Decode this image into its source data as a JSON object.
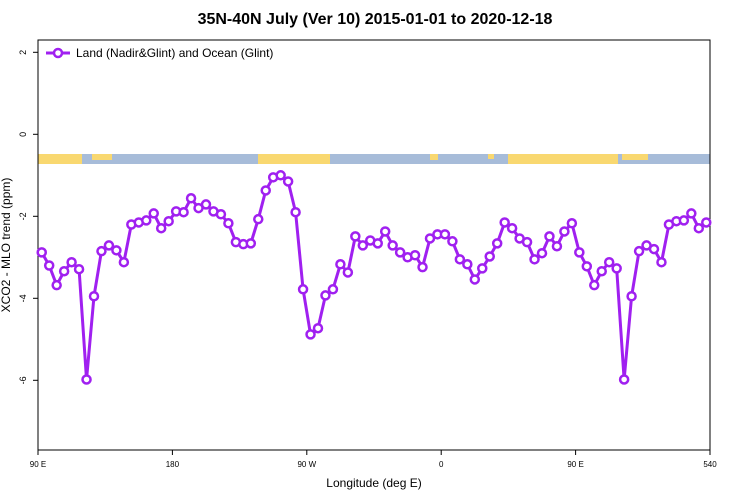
{
  "chart_data": {
    "type": "line",
    "title": "35N-40N July (Ver 10)   2015-01-01 to 2020-12-18",
    "xlabel": "Longitude (deg E)",
    "ylabel": "XCO2 - MLO trend (ppm)",
    "x": [
      92.5,
      97.5,
      102.5,
      107.5,
      112.5,
      117.5,
      122.5,
      127.5,
      132.5,
      137.5,
      142.5,
      147.5,
      152.5,
      157.5,
      162.5,
      167.5,
      172.5,
      177.5,
      182.5,
      187.5,
      192.5,
      197.5,
      202.5,
      207.5,
      212.5,
      217.5,
      222.5,
      227.5,
      232.5,
      237.5,
      242.5,
      247.5,
      252.5,
      257.5,
      262.5,
      267.5,
      272.5,
      277.5,
      282.5,
      287.5,
      292.5,
      297.5,
      302.5,
      307.5,
      312.5,
      317.5,
      322.5,
      327.5,
      332.5,
      337.5,
      342.5,
      347.5,
      352.5,
      357.5,
      362.5,
      367.5,
      372.5,
      377.5,
      382.5,
      387.5,
      392.5,
      397.5,
      402.5,
      407.5,
      412.5,
      417.5,
      422.5,
      427.5,
      432.5,
      437.5,
      442.5,
      447.5,
      452.5,
      457.5,
      462.5,
      467.5,
      472.5,
      477.5,
      482.5,
      487.5,
      492.5,
      497.5,
      502.5,
      507.5,
      512.5,
      517.5,
      522.5,
      527.5,
      532.5,
      537.5
    ],
    "series": [
      {
        "name": "Land (Nadir&Glint) and Ocean (Glint)",
        "color": "#a020f0",
        "values": [
          -2.88,
          -3.2,
          -3.68,
          -3.34,
          -3.12,
          -3.29,
          -5.98,
          -3.95,
          -2.85,
          -2.71,
          -2.83,
          -3.12,
          -2.2,
          -2.15,
          -2.1,
          -1.93,
          -2.29,
          -2.12,
          -1.88,
          -1.9,
          -1.56,
          -1.8,
          -1.71,
          -1.88,
          -1.95,
          -2.17,
          -2.63,
          -2.68,
          -2.66,
          -2.07,
          -1.37,
          -1.05,
          -1.0,
          -1.15,
          -1.9,
          -3.78,
          -4.88,
          -4.73,
          -3.93,
          -3.78,
          -3.17,
          -3.37,
          -2.49,
          -2.71,
          -2.59,
          -2.66,
          -2.37,
          -2.71,
          -2.88,
          -3.0,
          -2.95,
          -3.24,
          -2.54,
          -2.44,
          -2.44,
          -2.61,
          -3.05,
          -3.17,
          -3.54,
          -3.27,
          -2.98,
          -2.66,
          -2.15,
          -2.29,
          -2.54,
          -2.63,
          -3.05,
          -2.9,
          -2.49,
          -2.73,
          -2.37,
          -2.17,
          -2.88,
          -3.22,
          -3.68,
          -3.34,
          -3.12,
          -3.27,
          -5.98,
          -3.95,
          -2.85,
          -2.71,
          -2.8,
          -3.12,
          -2.2,
          -2.12,
          -2.1,
          -1.93,
          -2.29,
          -2.15
        ]
      }
    ],
    "xlim": [
      90,
      540
    ],
    "ylim": [
      -7.7,
      2.3
    ],
    "xticks": [
      {
        "value": 90,
        "label": "90 E"
      },
      180,
      {
        "value": 270,
        "label": "90 W"
      },
      {
        "value": 360,
        "label": "0"
      },
      {
        "value": 450,
        "label": "90 E"
      },
      540
    ],
    "yticks": [
      2,
      0,
      -2,
      -4,
      -6
    ],
    "legend": "top-left"
  }
}
